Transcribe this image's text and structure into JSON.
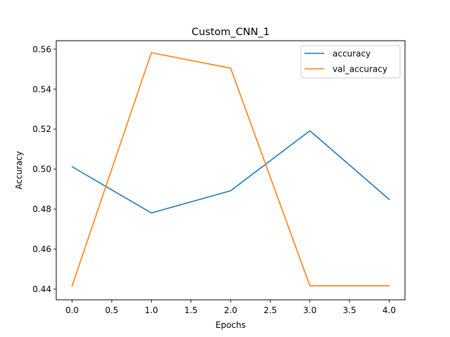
{
  "chart_data": {
    "type": "line",
    "title": "Custom_CNN_1",
    "xlabel": "Epochs",
    "ylabel": "Accuracy",
    "x": [
      0,
      1,
      2,
      3,
      4
    ],
    "xlim": [
      -0.2,
      4.2
    ],
    "ylim": [
      0.4347,
      0.5642
    ],
    "xticks": [
      "0.0",
      "0.5",
      "1.0",
      "1.5",
      "2.0",
      "2.5",
      "3.0",
      "3.5",
      "4.0"
    ],
    "yticks": [
      "0.44",
      "0.46",
      "0.48",
      "0.50",
      "0.52",
      "0.54",
      "0.56"
    ],
    "grid": false,
    "legend_position": "top-right",
    "series": [
      {
        "name": "accuracy",
        "color": "#1f77b4",
        "values": [
          0.5012,
          0.4781,
          0.4892,
          0.5192,
          0.4849
        ]
      },
      {
        "name": "val_accuracy",
        "color": "#ff7f0e",
        "values": [
          0.4417,
          0.5582,
          0.5505,
          0.4417,
          0.4417
        ]
      }
    ]
  }
}
